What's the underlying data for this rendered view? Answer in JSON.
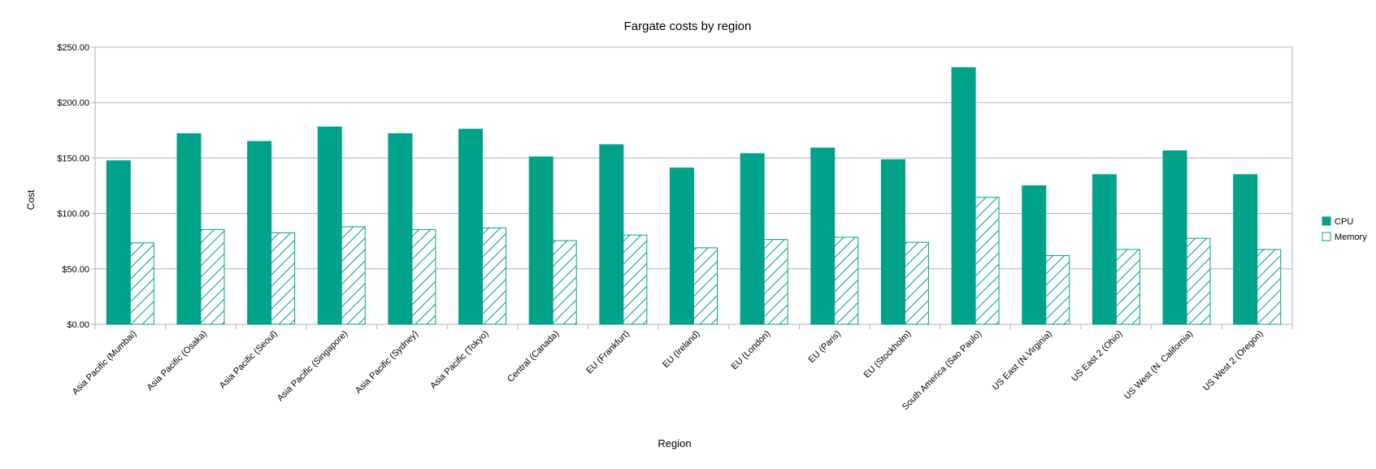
{
  "chart_data": {
    "type": "bar",
    "title": "Fargate costs by region",
    "xlabel": "Region",
    "ylabel": "Cost",
    "ylim": [
      0,
      250
    ],
    "ytick_values": [
      0,
      50,
      100,
      150,
      200,
      250
    ],
    "ytick_labels": [
      "$0.00",
      "$50.00",
      "$100.00",
      "$150.00",
      "$200.00",
      "$250.00"
    ],
    "grid": true,
    "legend_position": "right",
    "categories": [
      "Asia Pacific (Mumbai)",
      "Asia Pacific (Osaka)",
      "Asia Pacific (Seoul)",
      "Asia Pacific (Singapore)",
      "Asia Pacific (Sydney)",
      "Asia Pacific (Tokyo)",
      "Central (Canada)",
      "EU (Frankfurt)",
      "EU (Ireland)",
      "EU (London)",
      "EU (Paris)",
      "EU (Stockholm)",
      "South America (Sao Paulo)",
      "US East (N.Virginia)",
      "US East 2 (Ohio)",
      "US West (N. California)",
      "US West 2 (Oregon)"
    ],
    "series": [
      {
        "name": "CPU",
        "color": "#00a38a",
        "fill": "solid",
        "values": [
          147.5,
          172,
          165,
          178,
          172,
          176,
          151,
          162,
          141,
          154,
          159,
          148.5,
          231.5,
          125,
          135,
          156.5,
          135
        ]
      },
      {
        "name": "Memory",
        "color": "#00a38a",
        "fill": "hatched",
        "values": [
          73.5,
          85.5,
          82.5,
          88,
          85.5,
          87,
          75.5,
          80.5,
          69,
          76.5,
          78.5,
          74,
          114.5,
          62,
          67.5,
          77.5,
          67.5
        ]
      }
    ]
  }
}
